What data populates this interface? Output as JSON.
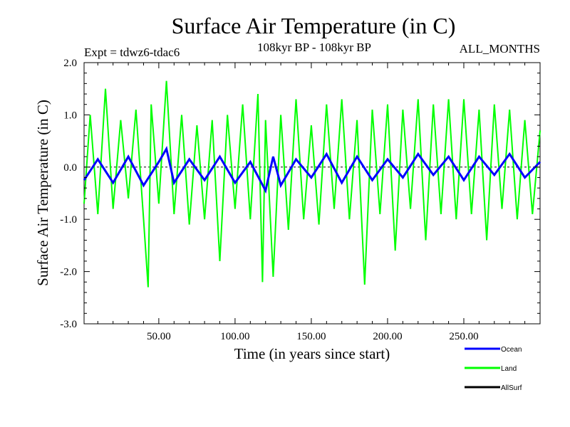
{
  "chart_data": {
    "type": "line",
    "title": "Surface Air Temperature (in C)",
    "subtitle": "108kyr BP - 108kyr BP",
    "expt_label": "Expt = tdwz6-tdac6",
    "season_label": "ALL_MONTHS",
    "xlabel": "Time (in years since start)",
    "ylabel": "Surface Air Temperature (in C)",
    "xlim": [
      1,
      300
    ],
    "ylim": [
      -3.0,
      2.0
    ],
    "xticks": [
      {
        "value": 50,
        "label": "50.00"
      },
      {
        "value": 100,
        "label": "100.00"
      },
      {
        "value": 150,
        "label": "150.00"
      },
      {
        "value": 200,
        "label": "200.00"
      },
      {
        "value": 250,
        "label": "250.00"
      }
    ],
    "yticks": [
      {
        "value": 2.0,
        "label": "2.0"
      },
      {
        "value": 1.0,
        "label": "1.0"
      },
      {
        "value": 0.0,
        "label": "0.0"
      },
      {
        "value": -1.0,
        "label": "-1.0"
      },
      {
        "value": -2.0,
        "label": "-2.0"
      },
      {
        "value": -3.0,
        "label": "-3.0"
      }
    ],
    "zero_line": 0.0,
    "legend_position": "bottom-right",
    "series": [
      {
        "name": "Land",
        "color": "#00ff00",
        "x": [
          1,
          5,
          10,
          15,
          20,
          25,
          30,
          35,
          40,
          43,
          45,
          50,
          55,
          60,
          65,
          70,
          75,
          80,
          85,
          90,
          95,
          100,
          105,
          110,
          115,
          118,
          120,
          125,
          130,
          135,
          140,
          145,
          150,
          155,
          160,
          165,
          170,
          175,
          180,
          185,
          190,
          195,
          200,
          205,
          210,
          215,
          220,
          225,
          230,
          235,
          240,
          245,
          250,
          255,
          260,
          265,
          270,
          275,
          280,
          285,
          290,
          295,
          300
        ],
        "values": [
          -0.7,
          1.0,
          -0.9,
          1.5,
          -0.8,
          0.9,
          -0.6,
          1.1,
          -1.0,
          -2.3,
          1.2,
          -0.7,
          1.65,
          -0.9,
          1.0,
          -1.1,
          0.8,
          -1.0,
          0.9,
          -1.8,
          1.0,
          -0.8,
          1.2,
          -1.0,
          1.4,
          -2.2,
          0.9,
          -2.1,
          1.0,
          -1.2,
          1.3,
          -1.0,
          0.8,
          -1.1,
          1.2,
          -0.8,
          1.3,
          -1.0,
          0.9,
          -2.25,
          1.1,
          -0.9,
          1.2,
          -1.6,
          1.1,
          -0.8,
          1.3,
          -1.4,
          1.2,
          -0.9,
          1.3,
          -1.0,
          1.3,
          -0.9,
          1.1,
          -1.4,
          1.2,
          -0.8,
          1.1,
          -1.0,
          0.9,
          -0.9,
          0.7
        ]
      },
      {
        "name": "Ocean",
        "color": "#0000ff",
        "x": [
          1,
          10,
          20,
          30,
          40,
          50,
          55,
          60,
          70,
          80,
          90,
          100,
          110,
          120,
          125,
          130,
          140,
          150,
          160,
          170,
          180,
          190,
          200,
          210,
          220,
          230,
          240,
          250,
          260,
          270,
          280,
          290,
          300
        ],
        "values": [
          -0.25,
          0.15,
          -0.3,
          0.2,
          -0.35,
          0.1,
          0.35,
          -0.3,
          0.15,
          -0.25,
          0.2,
          -0.3,
          0.1,
          -0.45,
          0.2,
          -0.35,
          0.15,
          -0.2,
          0.25,
          -0.3,
          0.2,
          -0.25,
          0.15,
          -0.2,
          0.25,
          -0.15,
          0.2,
          -0.25,
          0.2,
          -0.15,
          0.25,
          -0.2,
          0.1
        ]
      },
      {
        "name": "AllSurf",
        "color": "#000000",
        "x": [],
        "values": []
      }
    ]
  }
}
